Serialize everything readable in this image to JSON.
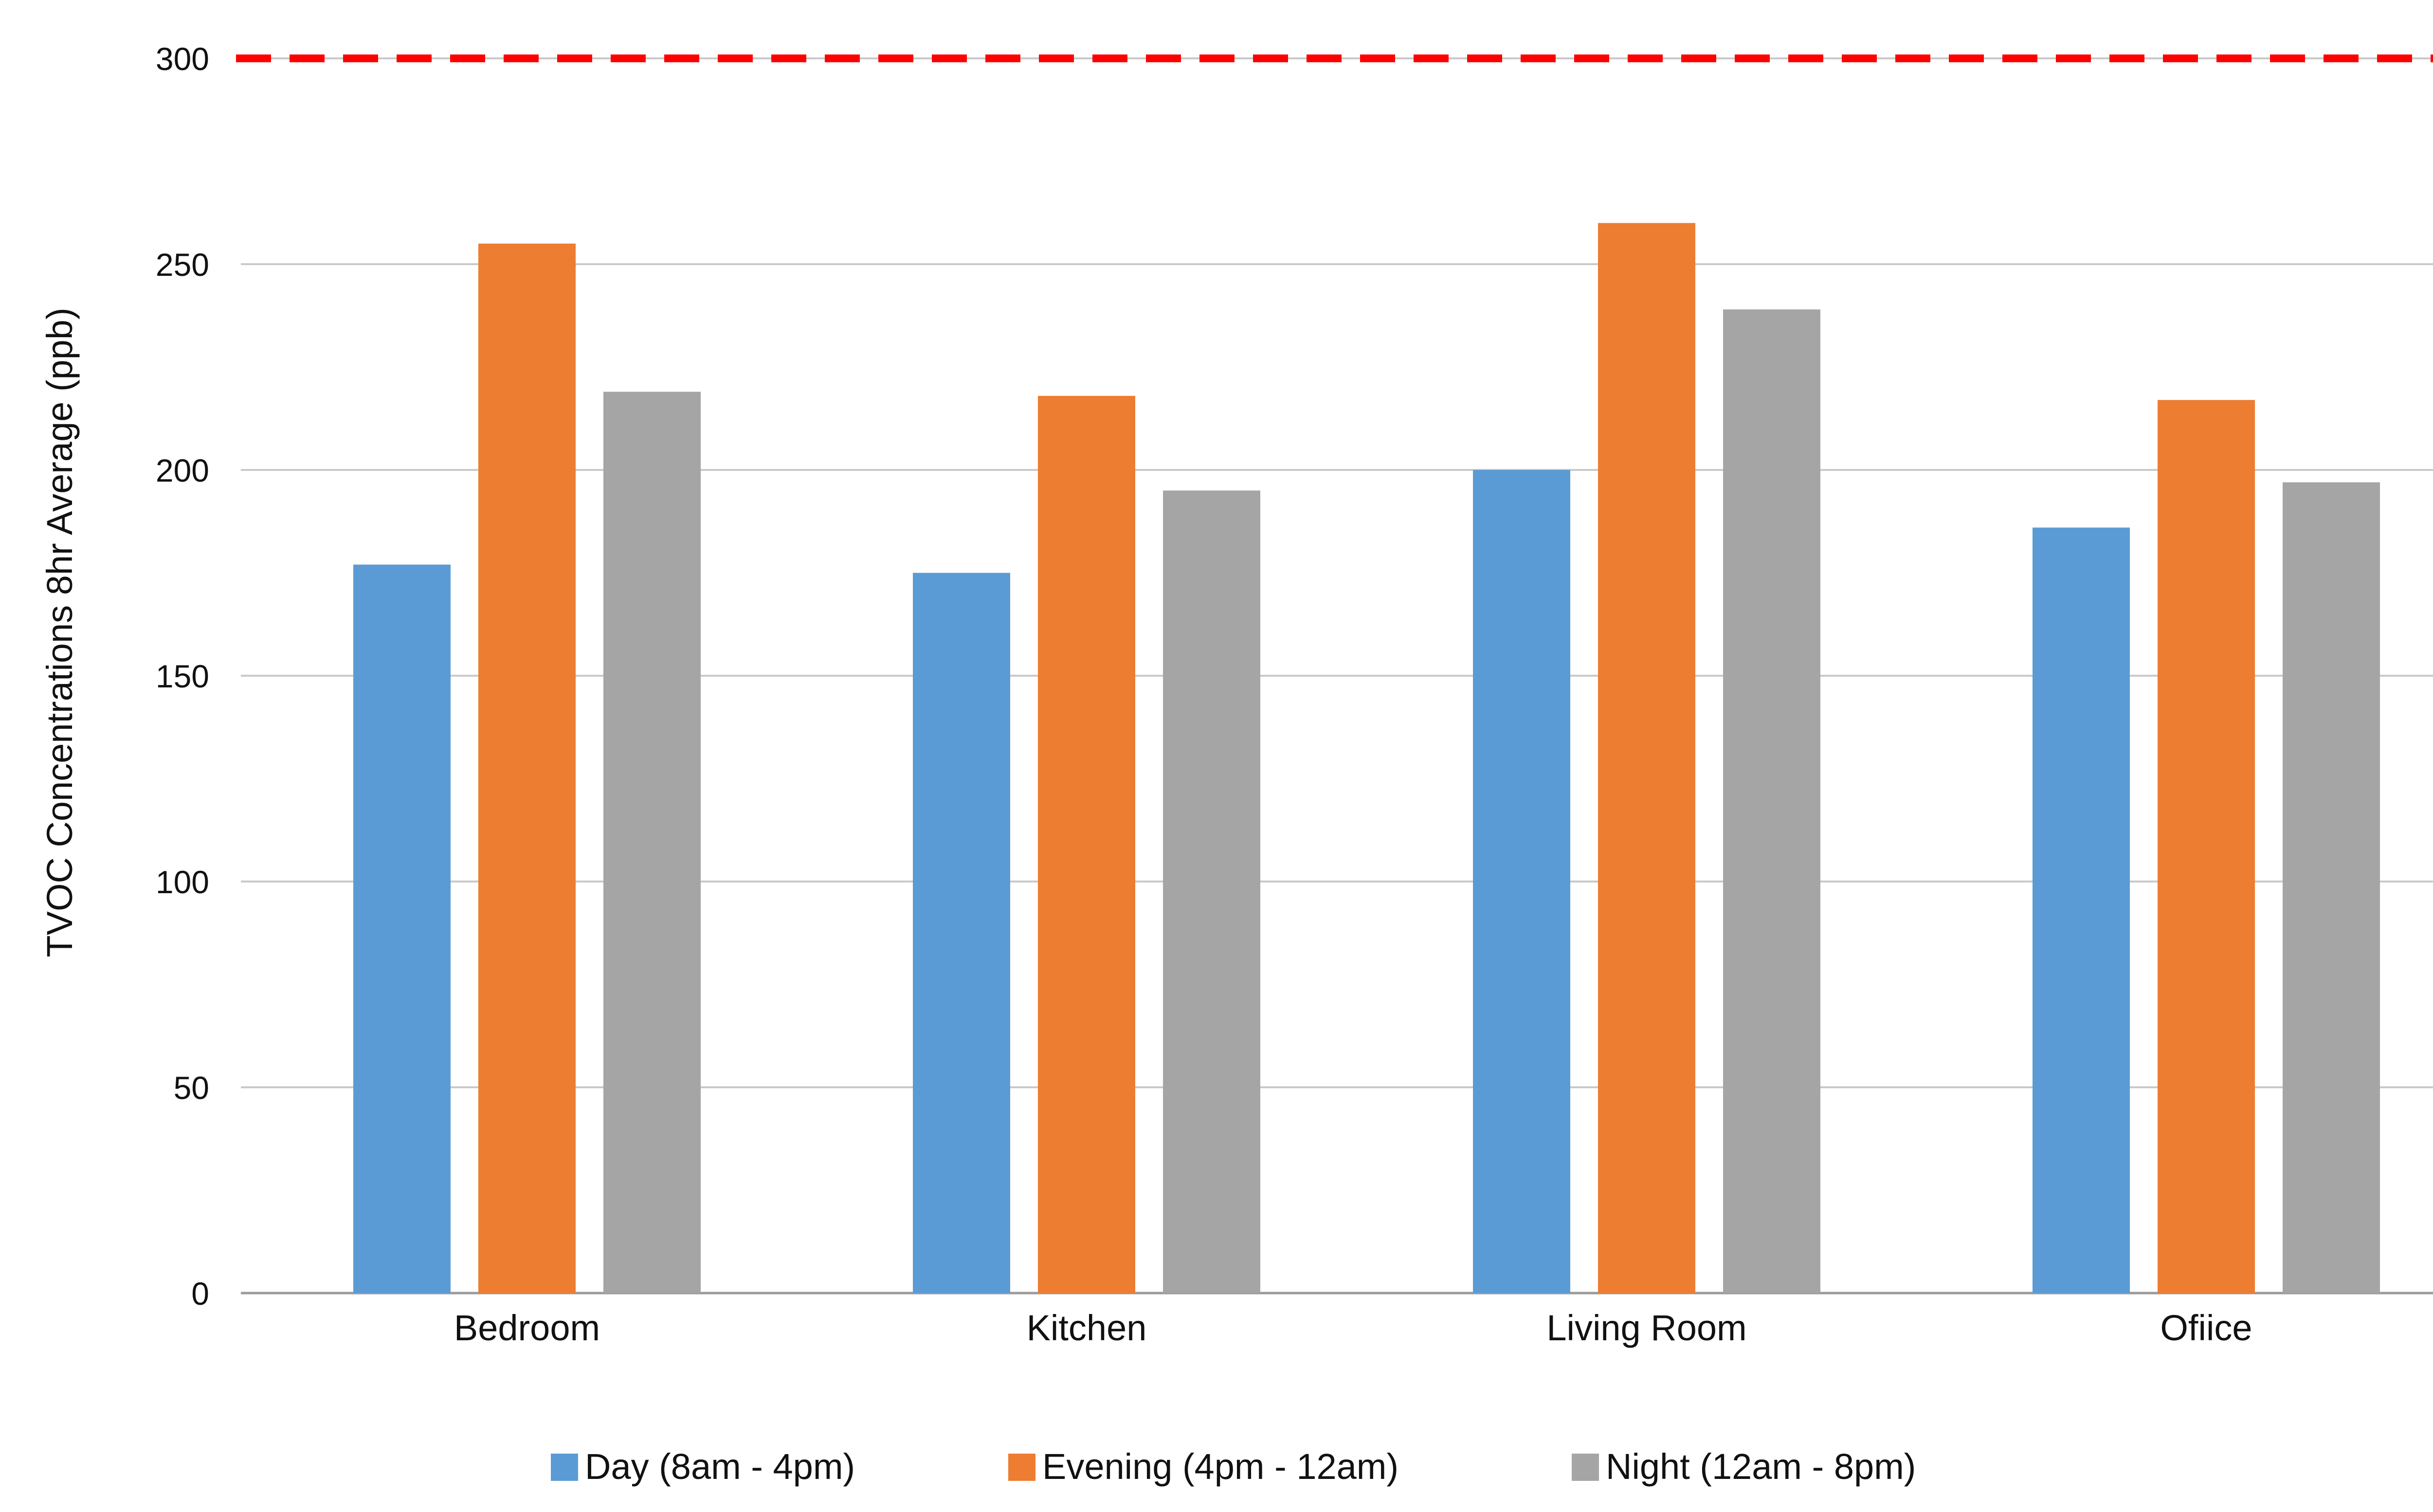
{
  "chart_data": {
    "type": "bar",
    "title": "",
    "xlabel": "",
    "ylabel": "TVOC Concentrations 8hr Average (ppb)",
    "ylim": [
      0,
      300
    ],
    "yticks": [
      0,
      50,
      100,
      150,
      200,
      250,
      300
    ],
    "grid": true,
    "legend_position": "bottom",
    "categories": [
      "Bedroom",
      "Kitchen",
      "Living Room",
      "Ofiice"
    ],
    "series": [
      {
        "name": "Day (8am - 4pm)",
        "color": "#5B9BD5",
        "values": [
          177,
          175,
          200,
          186
        ]
      },
      {
        "name": "Evening (4pm - 12am)",
        "color": "#ED7D31",
        "values": [
          255,
          218,
          260,
          217
        ]
      },
      {
        "name": "Night (12am - 8pm)",
        "color": "#A5A5A5",
        "values": [
          219,
          195,
          239,
          197
        ]
      }
    ],
    "reference_line": {
      "value": 300,
      "color": "#FF0000",
      "style": "dashed"
    }
  }
}
